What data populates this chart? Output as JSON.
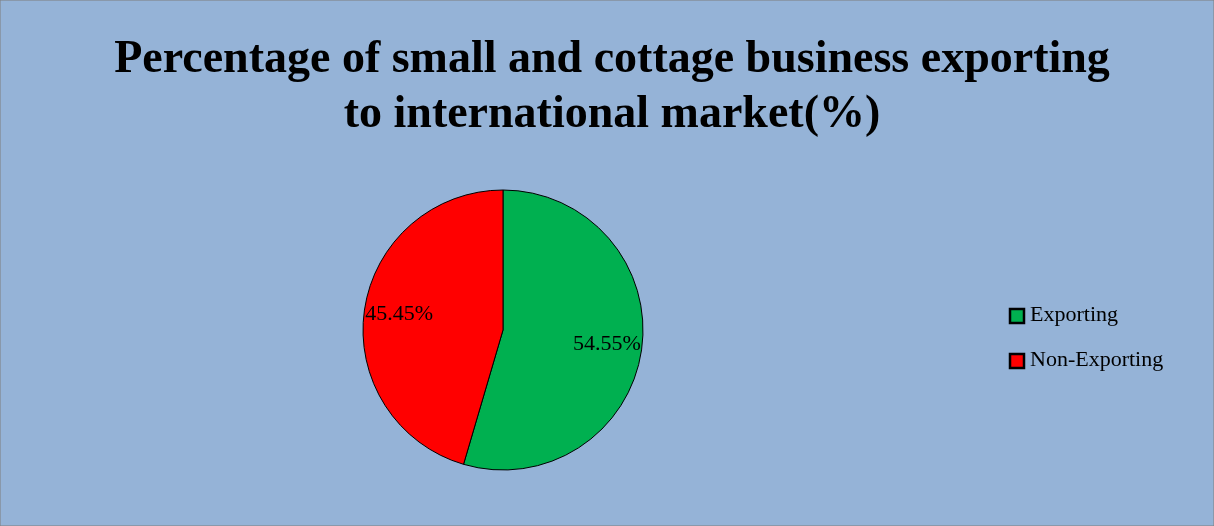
{
  "chart_data": {
    "type": "pie",
    "title": "Percentage of small and cottage business exporting to international market(%)",
    "categories": [
      "Exporting",
      "Non-Exporting"
    ],
    "values": [
      54.55,
      45.45
    ],
    "colors": [
      "#00b050",
      "#ff0000"
    ],
    "value_labels": [
      "54.55%",
      "45.45%"
    ],
    "legend": "right"
  }
}
